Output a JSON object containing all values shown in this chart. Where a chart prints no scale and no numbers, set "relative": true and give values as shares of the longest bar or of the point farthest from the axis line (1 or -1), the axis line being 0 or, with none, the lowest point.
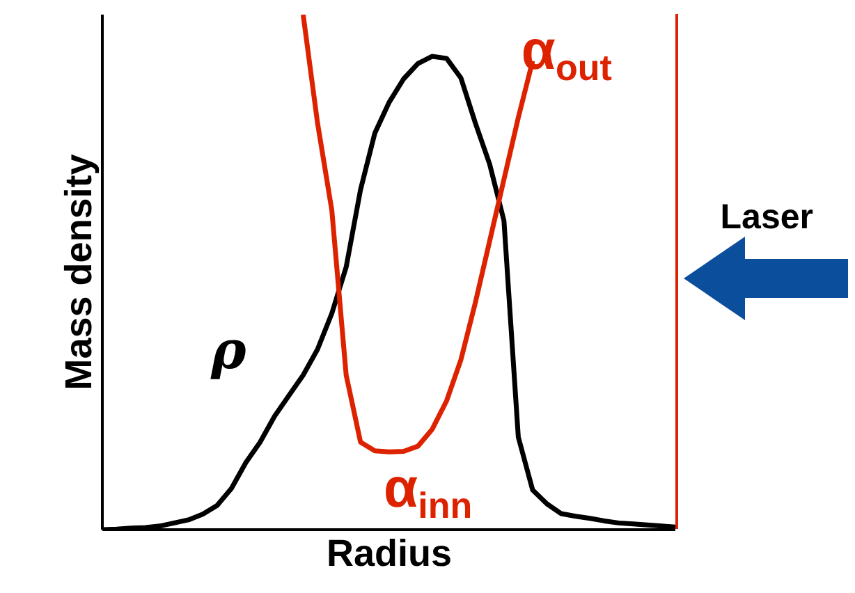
{
  "chart_data": {
    "type": "line",
    "xlabel": "Radius",
    "ylabel": "Mass density",
    "relative": true,
    "categories": [
      null,
      null,
      null,
      null,
      null,
      null,
      null,
      null,
      null,
      null,
      null,
      null,
      null,
      null,
      null,
      null,
      null,
      null,
      null,
      null,
      null,
      null,
      null,
      null,
      null,
      null,
      null,
      null,
      null,
      null,
      null,
      null,
      null,
      null,
      null,
      null,
      null,
      null,
      null,
      null,
      null
    ],
    "series": [
      {
        "color": "#000000",
        "values": [
          0,
          0.001,
          0.003,
          0.004,
          0.007,
          0.013,
          0.019,
          0.03,
          0.047,
          0.08,
          0.13,
          0.17,
          0.22,
          0.26,
          0.3,
          0.35,
          0.42,
          0.51,
          0.66,
          0.77,
          0.83,
          0.875,
          0.905,
          0.919,
          0.915,
          0.877,
          0.79,
          0.71,
          0.6,
          0.18,
          0.077,
          0.05,
          0.031,
          0.026,
          0.022,
          0.017,
          0.013,
          0.011,
          0.009,
          0.007,
          0.005
        ]
      },
      {
        "color": "#dd2200",
        "values": [
          null,
          null,
          null,
          null,
          null,
          null,
          null,
          null,
          null,
          null,
          null,
          null,
          null,
          null,
          1.0,
          0.79,
          0.62,
          0.3,
          0.17,
          0.153,
          0.151,
          0.152,
          0.162,
          0.195,
          0.25,
          0.33,
          0.44,
          0.56,
          0.68,
          0.8,
          0.91,
          null,
          null,
          null,
          null,
          null,
          null,
          null,
          null,
          null,
          null
        ]
      }
    ],
    "annotations": [
      "ρ",
      "α$_{out}$",
      "α$_{inn}$",
      "Laser"
    ]
  }
}
